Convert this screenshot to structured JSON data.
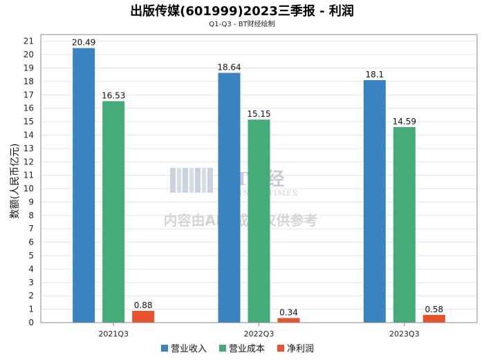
{
  "chart_data": {
    "type": "bar",
    "title": "出版传媒(601999)2023三季报 - 利润",
    "subtitle": "Q1-Q3 - BT财经绘制",
    "xlabel": "",
    "ylabel": "数额(人民币亿元)",
    "ylim": [
      0,
      21.5
    ],
    "yticks": [
      0,
      1,
      2,
      3,
      4,
      5,
      6,
      7,
      8,
      9,
      10,
      11,
      12,
      13,
      14,
      15,
      16,
      17,
      18,
      19,
      20,
      21
    ],
    "categories": [
      "2021Q3",
      "2022Q3",
      "2023Q3"
    ],
    "series": [
      {
        "name": "营业收入",
        "color": "#3a83c1",
        "values": [
          20.49,
          18.64,
          18.1
        ]
      },
      {
        "name": "营业成本",
        "color": "#45ab78",
        "values": [
          16.53,
          15.15,
          14.59
        ]
      },
      {
        "name": "净利润",
        "color": "#e8532b",
        "values": [
          0.88,
          0.34,
          0.58
        ]
      }
    ],
    "legend_position": "bottom-center",
    "grid": true
  },
  "watermark": {
    "brand": "BT财经",
    "brand_sub": "BUSINESSTIMES",
    "note": "内容由AI生成，仅供参考"
  }
}
